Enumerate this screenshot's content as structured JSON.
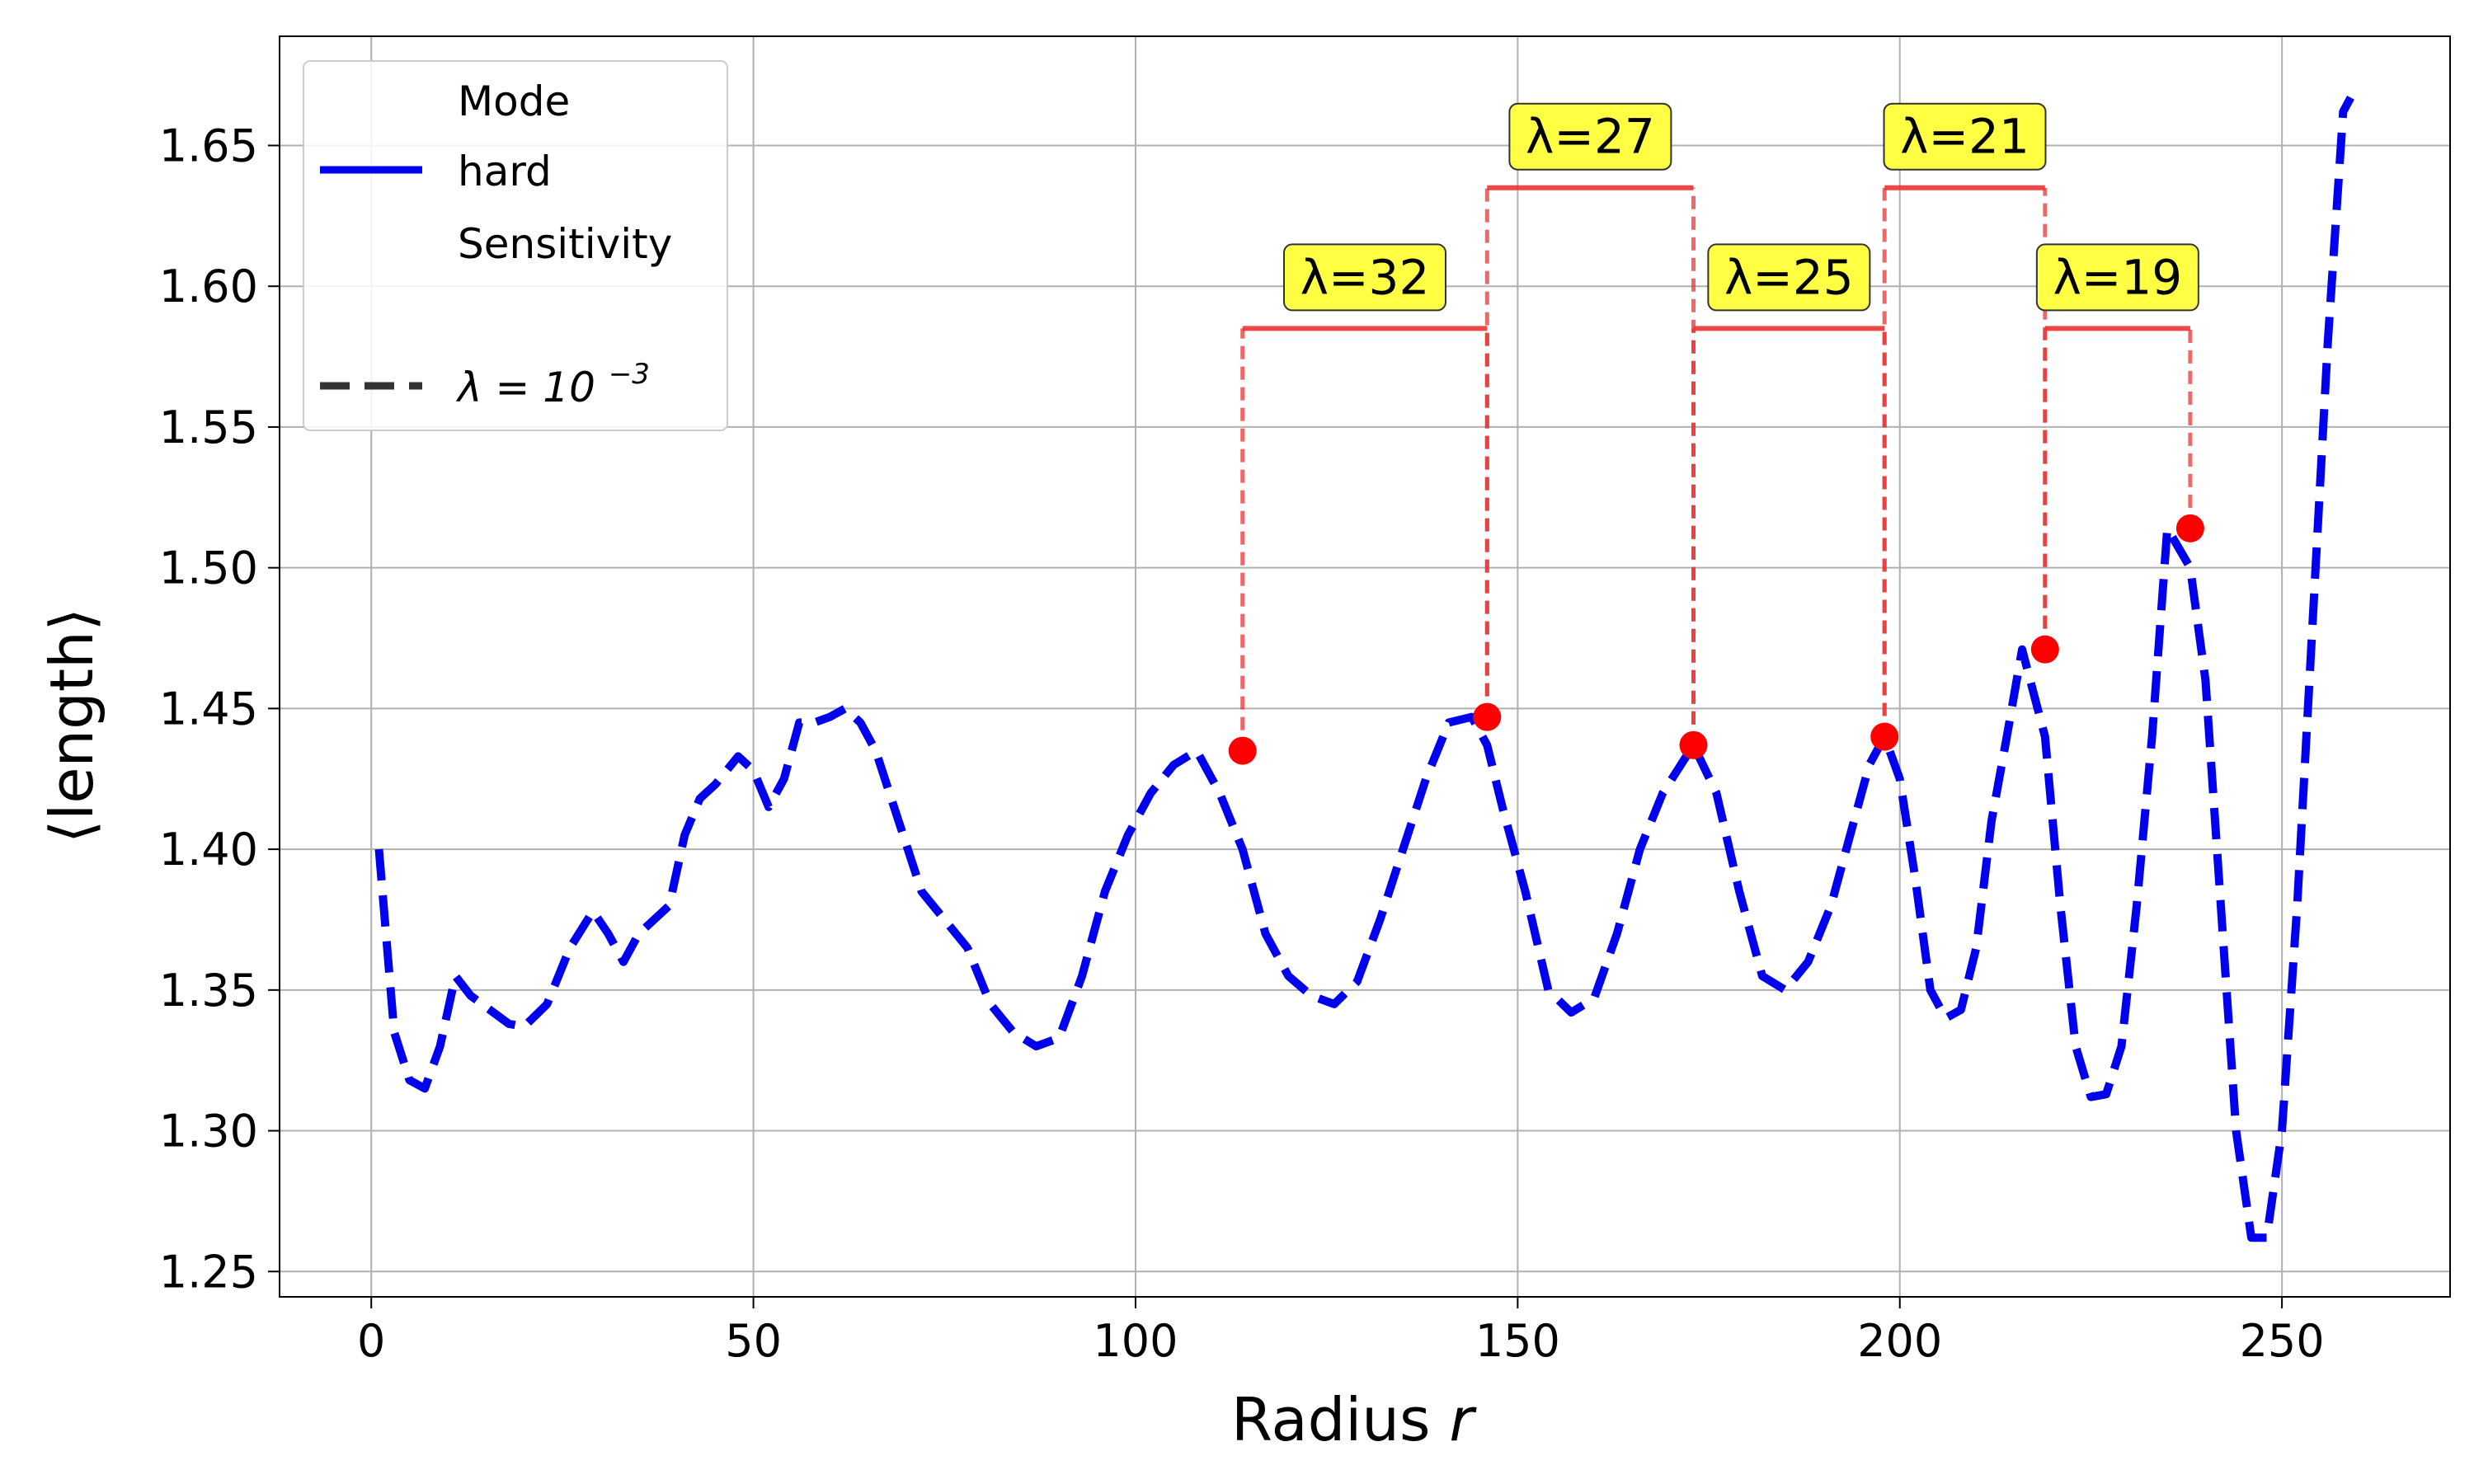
{
  "chart_data": {
    "type": "line",
    "xlabel": "Radius",
    "xlabel_var": "r",
    "ylabel": "⟨length⟩",
    "xlim": [
      -12,
      272
    ],
    "ylim": [
      1.241,
      1.6888
    ],
    "xticks": [
      0,
      50,
      100,
      150,
      200,
      250
    ],
    "yticks": [
      1.25,
      1.3,
      1.35,
      1.4,
      1.45,
      1.5,
      1.55,
      1.6,
      1.65
    ],
    "ytick_labels": [
      "1.25",
      "1.30",
      "1.35",
      "1.40",
      "1.45",
      "1.50",
      "1.55",
      "1.60",
      "1.65"
    ],
    "grid": true,
    "legend": {
      "placement": "top-left",
      "title1": "Mode",
      "entry1": "hard",
      "title2": "Sensitivity",
      "entry2_prefix": "λ = 10",
      "entry2_exp": "−3"
    },
    "series": [
      {
        "name": "hard",
        "color": "#0000ee",
        "style": "dashed",
        "x": [
          1,
          3,
          5,
          7,
          9,
          11,
          13,
          15,
          18,
          20,
          23,
          26,
          29,
          31,
          33,
          35,
          37,
          39,
          41,
          43,
          45,
          48,
          50,
          52,
          54,
          56,
          58,
          60,
          62,
          64,
          66,
          69,
          72,
          75,
          78,
          81,
          84,
          87,
          90,
          93,
          96,
          99,
          102,
          105,
          108,
          111,
          114,
          117,
          120,
          123,
          126,
          129,
          132,
          135,
          138,
          141,
          144,
          146,
          148,
          151,
          154,
          157,
          160,
          163,
          166,
          169,
          173,
          176,
          179,
          182,
          185,
          188,
          191,
          194,
          196,
          198,
          200,
          202,
          204,
          206,
          208,
          210,
          212,
          214,
          216,
          219,
          221,
          223,
          225,
          227,
          229,
          231,
          233,
          235,
          238,
          240,
          242,
          244,
          246,
          248,
          250,
          252,
          254,
          256,
          258,
          259
        ],
        "y": [
          1.4,
          1.335,
          1.318,
          1.315,
          1.33,
          1.355,
          1.348,
          1.344,
          1.338,
          1.337,
          1.345,
          1.365,
          1.378,
          1.37,
          1.36,
          1.37,
          1.375,
          1.38,
          1.405,
          1.418,
          1.423,
          1.433,
          1.428,
          1.415,
          1.425,
          1.445,
          1.445,
          1.447,
          1.45,
          1.445,
          1.435,
          1.41,
          1.385,
          1.375,
          1.365,
          1.345,
          1.335,
          1.33,
          1.333,
          1.355,
          1.385,
          1.405,
          1.42,
          1.43,
          1.435,
          1.42,
          1.4,
          1.37,
          1.355,
          1.348,
          1.345,
          1.353,
          1.375,
          1.4,
          1.425,
          1.445,
          1.447,
          1.437,
          1.415,
          1.385,
          1.35,
          1.342,
          1.347,
          1.37,
          1.4,
          1.42,
          1.437,
          1.42,
          1.385,
          1.355,
          1.35,
          1.36,
          1.38,
          1.41,
          1.43,
          1.44,
          1.425,
          1.39,
          1.35,
          1.34,
          1.343,
          1.365,
          1.41,
          1.44,
          1.471,
          1.44,
          1.38,
          1.33,
          1.312,
          1.313,
          1.33,
          1.38,
          1.44,
          1.514,
          1.5,
          1.46,
          1.38,
          1.3,
          1.262,
          1.262,
          1.3,
          1.38,
          1.48,
          1.58,
          1.662,
          1.667
        ]
      }
    ],
    "peaks": [
      {
        "x": 114,
        "y": 1.435
      },
      {
        "x": 146,
        "y": 1.447
      },
      {
        "x": 173,
        "y": 1.437
      },
      {
        "x": 198,
        "y": 1.44
      },
      {
        "x": 219,
        "y": 1.471
      },
      {
        "x": 238,
        "y": 1.514
      }
    ],
    "annotations": [
      {
        "from": 114,
        "to": 146,
        "level": 1.585,
        "label": "λ=32"
      },
      {
        "from": 146,
        "to": 173,
        "level": 1.635,
        "label": "λ=27"
      },
      {
        "from": 173,
        "to": 198,
        "level": 1.585,
        "label": "λ=25"
      },
      {
        "from": 198,
        "to": 219,
        "level": 1.635,
        "label": "λ=21"
      },
      {
        "from": 219,
        "to": 238,
        "level": 1.585,
        "label": "λ=19"
      }
    ],
    "colors": {
      "line": "#0000ee",
      "peak": "#ff0000",
      "bracket": "#ee3333",
      "label_bg": "#ffff44",
      "grid": "#b0b0b0"
    }
  }
}
